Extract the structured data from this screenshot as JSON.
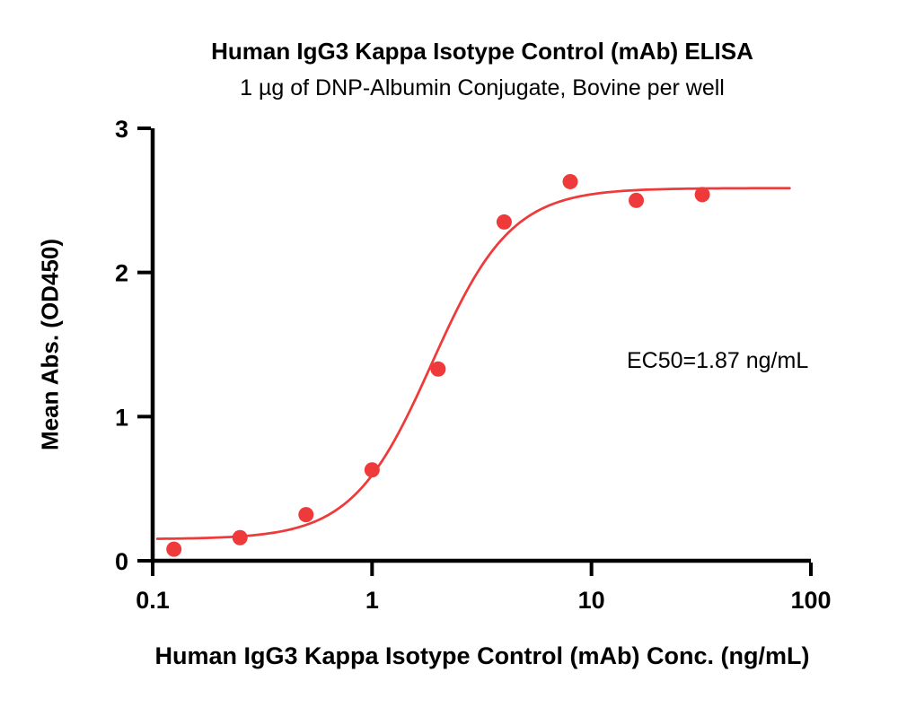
{
  "chart_data": {
    "type": "scatter",
    "title": "Human IgG3 Kappa Isotype Control (mAb) ELISA",
    "subtitle": "1 µg of DNP-Albumin Conjugate, Bovine per well",
    "xlabel": "Human IgG3 Kappa Isotype Control (mAb) Conc. (ng/mL)",
    "ylabel": "Mean Abs. (OD450)",
    "annotation": "EC50=1.87 ng/mL",
    "x_scale": "log10",
    "xlim": [
      0.1,
      100
    ],
    "ylim": [
      0,
      3
    ],
    "x_ticks": [
      0.1,
      1,
      10,
      100
    ],
    "x_tick_labels": [
      "0.1",
      "1",
      "10",
      "100"
    ],
    "y_ticks": [
      0,
      1,
      2,
      3
    ],
    "y_tick_labels": [
      "0",
      "1",
      "2",
      "3"
    ],
    "points": {
      "x": [
        0.125,
        0.25,
        0.5,
        1,
        2,
        4,
        8,
        16,
        32
      ],
      "y": [
        0.08,
        0.16,
        0.32,
        0.63,
        1.33,
        2.35,
        2.63,
        2.5,
        2.54
      ]
    },
    "fit_curve": {
      "model": "4PL",
      "bottom": 0.15,
      "top": 2.585,
      "ec50": 1.87,
      "hill": 2.4,
      "draw_range": [
        0.105,
        80
      ]
    },
    "point_color": "#ee3a3b",
    "line_color": "#ee3a3b",
    "axis_color": "#000000",
    "grid": false,
    "legend": "none"
  }
}
